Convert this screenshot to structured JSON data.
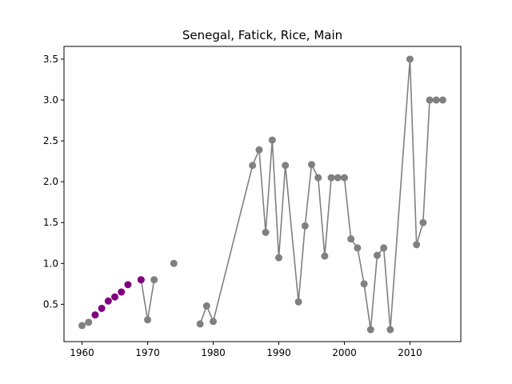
{
  "chart_data": {
    "type": "line",
    "title": "Senegal, Fatick, Rice, Main",
    "xlabel": "",
    "ylabel": "",
    "xlim": [
      1957.25,
      2017.75
    ],
    "ylim": [
      0.0435,
      3.6565
    ],
    "xticks": [
      1960,
      1970,
      1980,
      1990,
      2000,
      2010
    ],
    "yticks": [
      0.5,
      1.0,
      1.5,
      2.0,
      2.5,
      3.0,
      3.5
    ],
    "xtick_labels": [
      "1960",
      "1970",
      "1980",
      "1990",
      "2000",
      "2010"
    ],
    "ytick_labels": [
      "0.5",
      "1.0",
      "1.5",
      "2.0",
      "2.5",
      "3.0",
      "3.5"
    ],
    "grid": false,
    "series": [
      {
        "color": "#808080",
        "segments": [
          [
            [
              1960,
              0.24
            ],
            [
              1961,
              0.28
            ]
          ],
          [
            [
              1969,
              0.8
            ],
            [
              1970,
              0.31
            ],
            [
              1971,
              0.8
            ]
          ],
          [
            [
              1974,
              1.0
            ]
          ],
          [
            [
              1978,
              0.26
            ],
            [
              1979,
              0.48
            ],
            [
              1980,
              0.29
            ],
            [
              1986,
              2.2
            ],
            [
              1987,
              2.39
            ],
            [
              1988,
              1.38
            ],
            [
              1989,
              2.51
            ],
            [
              1990,
              1.07
            ],
            [
              1991,
              2.2
            ],
            [
              1993,
              0.53
            ],
            [
              1994,
              1.46
            ],
            [
              1995,
              2.21
            ],
            [
              1996,
              2.05
            ],
            [
              1997,
              1.09
            ],
            [
              1998,
              2.05
            ],
            [
              1999,
              2.05
            ],
            [
              2000,
              2.05
            ],
            [
              2001,
              1.3
            ],
            [
              2002,
              1.19
            ],
            [
              2003,
              0.75
            ],
            [
              2004,
              0.19
            ],
            [
              2005,
              1.1
            ],
            [
              2006,
              1.19
            ],
            [
              2007,
              0.19
            ],
            [
              2010,
              3.5
            ],
            [
              2011,
              1.23
            ],
            [
              2012,
              1.5
            ],
            [
              2013,
              3.0
            ],
            [
              2014,
              3.0
            ],
            [
              2015,
              3.0
            ]
          ]
        ]
      },
      {
        "color": "#800080",
        "segments": [
          [
            [
              1962,
              0.37
            ],
            [
              1963,
              0.45
            ],
            [
              1964,
              0.54
            ],
            [
              1965,
              0.59
            ],
            [
              1966,
              0.65
            ],
            [
              1967,
              0.74
            ],
            [
              1969,
              0.8
            ]
          ]
        ],
        "connected": false
      }
    ]
  }
}
